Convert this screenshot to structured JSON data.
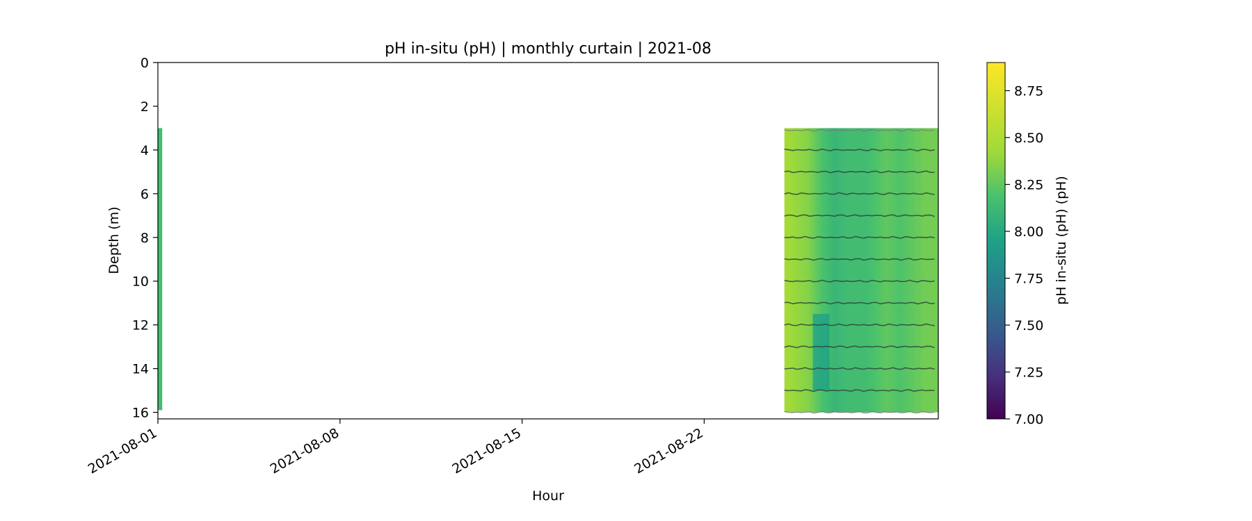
{
  "chart_data": {
    "type": "heatmap",
    "title": "pH in-situ (pH) | monthly curtain | 2021-08",
    "xlabel": "Hour",
    "ylabel": "Depth (m)",
    "x_range": [
      "2021-08-01T00:00",
      "2021-08-31T00:00"
    ],
    "y_range": [
      0,
      16.3
    ],
    "y_inverted": true,
    "x_ticks": [
      "2021-08-01",
      "2021-08-08",
      "2021-08-15",
      "2021-08-22"
    ],
    "y_ticks": [
      0,
      2,
      4,
      6,
      8,
      10,
      12,
      14,
      16
    ],
    "colorbar": {
      "label": "pH in-situ (pH) (pH)",
      "colormap": "viridis",
      "range": [
        7.0,
        8.9
      ],
      "ticks": [
        "7.00",
        "7.25",
        "7.50",
        "7.75",
        "8.00",
        "8.25",
        "8.50",
        "8.75"
      ]
    },
    "grid": false,
    "sensor_depths_m": [
      3.1,
      4,
      5,
      6,
      7,
      8,
      9,
      10,
      11,
      12,
      13,
      14,
      15,
      16
    ],
    "data_segments": [
      {
        "start": "2021-08-01T00:00",
        "end": "2021-08-01T04:00",
        "depth_top_m": 3.0,
        "depth_bottom_m": 15.9,
        "ph_typical": 8.15
      },
      {
        "start": "2021-08-25T02:00",
        "end": "2021-08-31T00:00",
        "depth_top_m": 3.0,
        "depth_bottom_m": 16.0,
        "ph_profile": [
          {
            "date": "2021-08-25T02:00",
            "ph": 8.45
          },
          {
            "date": "2021-08-26T00:00",
            "ph": 8.35
          },
          {
            "date": "2021-08-26T12:00",
            "ph": 8.2
          },
          {
            "date": "2021-08-27T00:00",
            "ph": 8.1
          },
          {
            "date": "2021-08-27T12:00",
            "ph": 8.15
          },
          {
            "date": "2021-08-28T06:00",
            "ph": 8.15
          },
          {
            "date": "2021-08-29T00:00",
            "ph": 8.25
          },
          {
            "date": "2021-08-29T12:00",
            "ph": 8.2
          },
          {
            "date": "2021-08-30T00:00",
            "ph": 8.25
          },
          {
            "date": "2021-08-30T12:00",
            "ph": 8.3
          },
          {
            "date": "2021-08-31T00:00",
            "ph": 8.3
          }
        ],
        "lowest_ph_feature": {
          "date": "2021-08-26T12:00",
          "depth_top_m": 11.5,
          "depth_bottom_m": 15.0,
          "ph": 7.95
        }
      }
    ]
  }
}
